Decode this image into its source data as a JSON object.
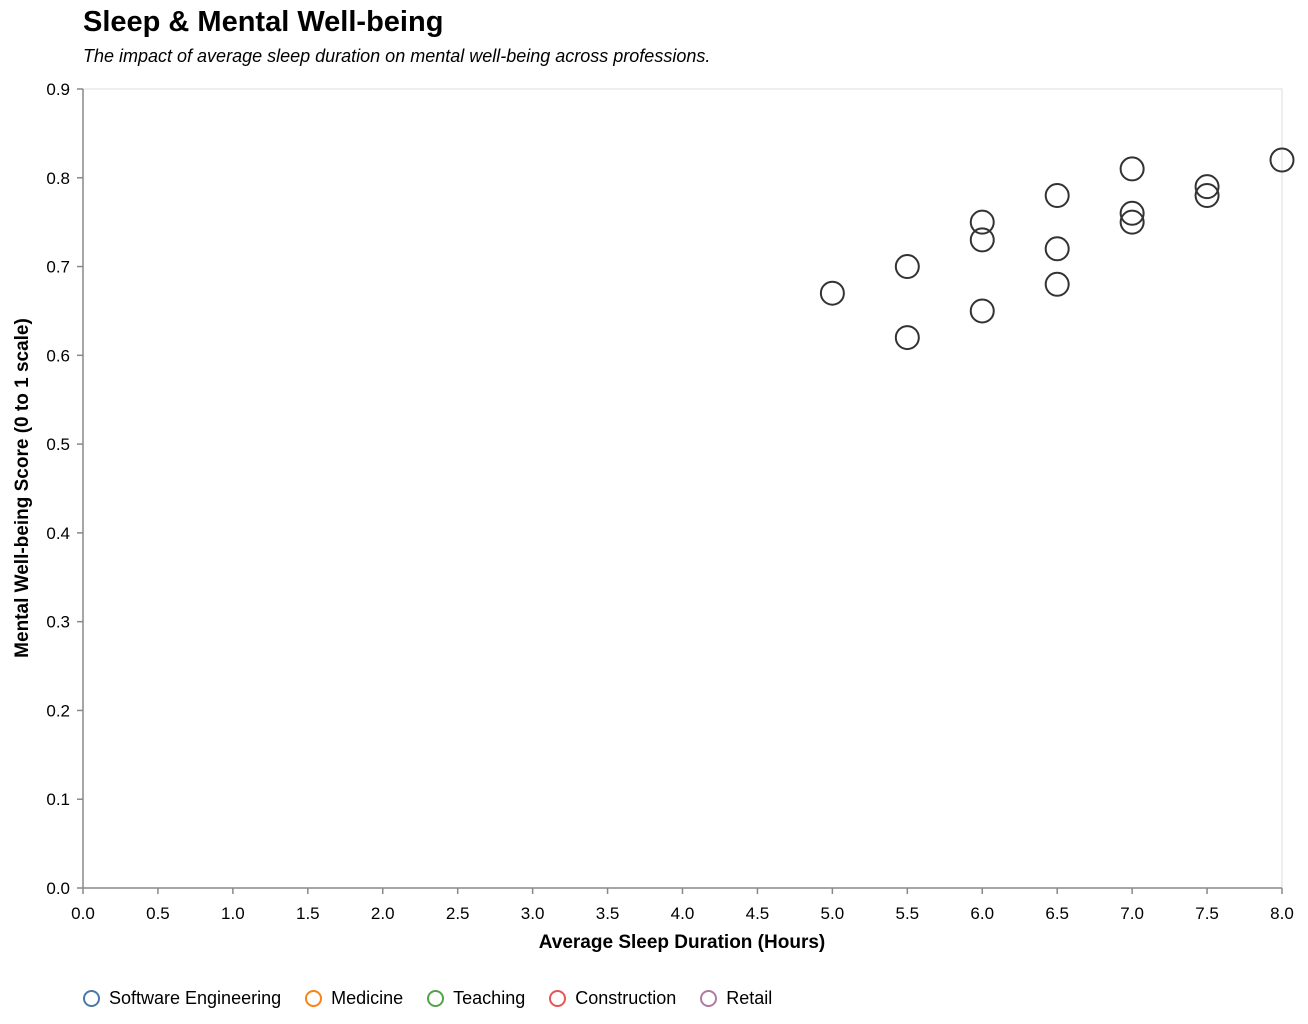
{
  "chart_data": {
    "type": "scatter",
    "title": "Sleep & Mental Well-being",
    "subtitle": "The impact of average sleep duration on mental well-being across professions.",
    "xlabel": "Average Sleep Duration (Hours)",
    "ylabel": "Mental Well-being Score (0 to 1 scale)",
    "xlim": [
      0,
      8
    ],
    "ylim": [
      0,
      0.9
    ],
    "x_ticks": [
      "0.0",
      "0.5",
      "1.0",
      "1.5",
      "2.0",
      "2.5",
      "3.0",
      "3.5",
      "4.0",
      "4.5",
      "5.0",
      "5.5",
      "6.0",
      "6.5",
      "7.0",
      "7.5",
      "8.0"
    ],
    "y_ticks": [
      "0.0",
      "0.1",
      "0.2",
      "0.3",
      "0.4",
      "0.5",
      "0.6",
      "0.7",
      "0.8",
      "0.9"
    ],
    "grid": false,
    "legend_position": "bottom-left",
    "legend": [
      {
        "label": "Software Engineering",
        "color": "#4c78a8"
      },
      {
        "label": "Medicine",
        "color": "#f58518"
      },
      {
        "label": "Teaching",
        "color": "#54a24b"
      },
      {
        "label": "Construction",
        "color": "#e45756"
      },
      {
        "label": "Retail",
        "color": "#b279a2"
      }
    ],
    "point_stroke_color": "#333333",
    "points": [
      {
        "x": 5.0,
        "y": 0.67
      },
      {
        "x": 5.5,
        "y": 0.7
      },
      {
        "x": 5.5,
        "y": 0.62
      },
      {
        "x": 6.0,
        "y": 0.75
      },
      {
        "x": 6.0,
        "y": 0.73
      },
      {
        "x": 6.0,
        "y": 0.65
      },
      {
        "x": 6.5,
        "y": 0.78
      },
      {
        "x": 6.5,
        "y": 0.72
      },
      {
        "x": 6.5,
        "y": 0.68
      },
      {
        "x": 7.0,
        "y": 0.81
      },
      {
        "x": 7.0,
        "y": 0.76
      },
      {
        "x": 7.0,
        "y": 0.75
      },
      {
        "x": 7.5,
        "y": 0.79
      },
      {
        "x": 7.5,
        "y": 0.78
      },
      {
        "x": 8.0,
        "y": 0.82
      }
    ]
  }
}
